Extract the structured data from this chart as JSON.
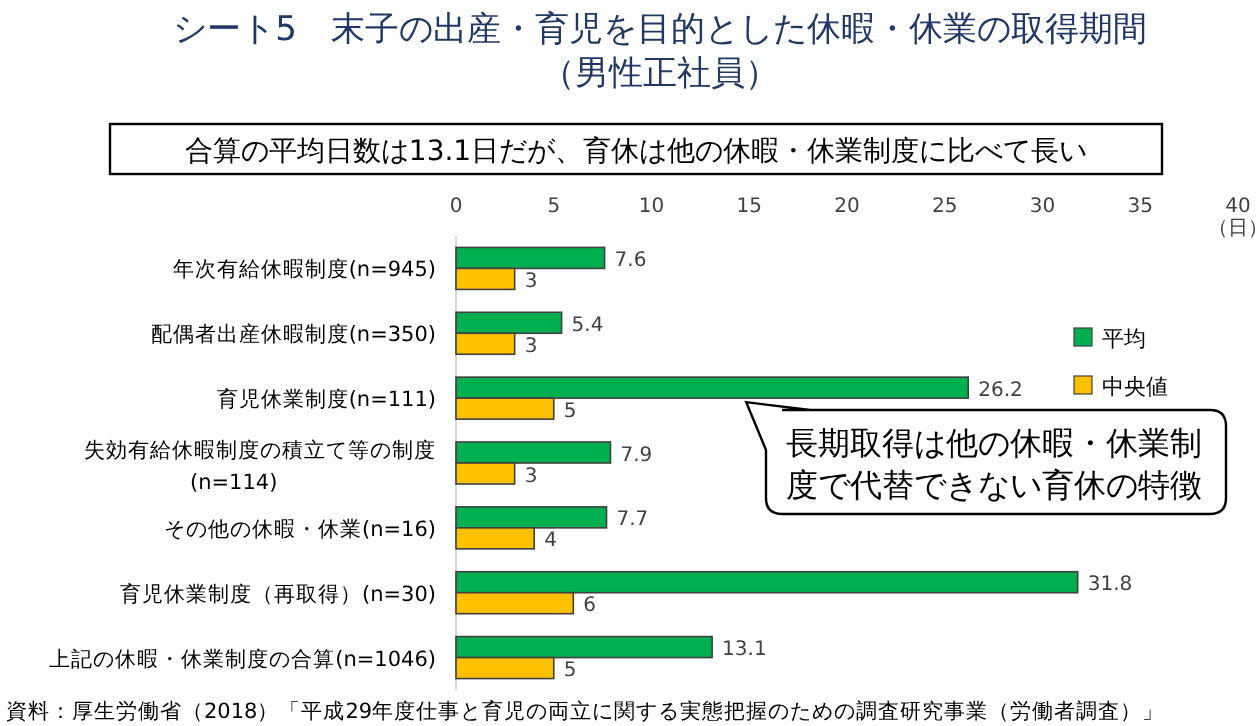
{
  "chart_data": {
    "type": "bar",
    "orientation": "horizontal",
    "title": "シート5　末子の出産・育児を目的とした休暇・休業の取得期間",
    "subtitle": "（男性正社員）",
    "xlabel": "（日）",
    "categories": [
      "年次有給休暇制度(n=945)",
      "配偶者出産休暇制度(n=350)",
      "育児休業制度(n=111)",
      "失効有給休暇制度の積立て等の制度(n=114)",
      "その他の休暇・休業(n=16)",
      "育児休業制度（再取得）(n=30)",
      "上記の休暇・休業制度の合算(n=1046)"
    ],
    "series": [
      {
        "name": "平均",
        "color": "#00b050",
        "values": [
          7.6,
          5.4,
          26.2,
          7.9,
          7.7,
          31.8,
          13.1
        ]
      },
      {
        "name": "中央値",
        "color": "#ffc000",
        "values": [
          3,
          3,
          5,
          3,
          4,
          6,
          5
        ]
      }
    ],
    "xlim": [
      0,
      40
    ],
    "xticks": [
      0,
      5,
      10,
      15,
      20,
      25,
      30,
      35,
      40
    ],
    "data_labels": true,
    "legend": "right",
    "annotations": [
      "合算の平均日数は13.1日だが、育休は他の休暇・休業制度に比べて長い",
      {
        "text": "長期取得は他の休暇・休業制度で代替できない育休の特徴",
        "x": 26.2,
        "y": "育児休業制度(n=111)"
      },
      "資料：厚生労働省（2018）「平成29年度仕事と育児の両立に関する実態把握のための調査研究事業（労働者調査）」"
    ]
  }
}
